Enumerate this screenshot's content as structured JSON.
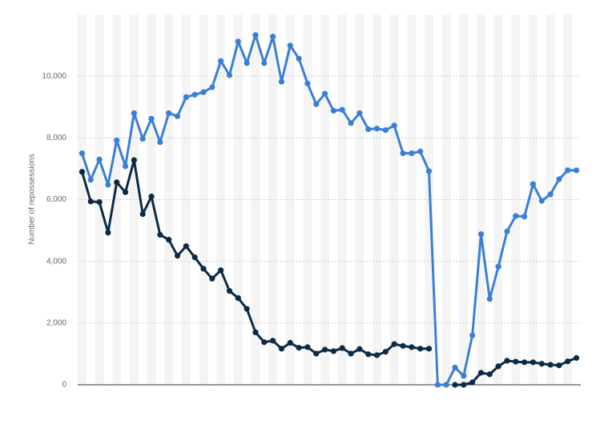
{
  "chart_data": {
    "type": "line",
    "y_label": "Number of repossessions",
    "categories": [
      null,
      null,
      null,
      null,
      null,
      null,
      null,
      null,
      null,
      null,
      null,
      null,
      null,
      null,
      null,
      null,
      null,
      null,
      null,
      null,
      null,
      null,
      null,
      null,
      null,
      null,
      null,
      null,
      null,
      null,
      null,
      null,
      null,
      null,
      null,
      null,
      null,
      null,
      null,
      null,
      null,
      null,
      null,
      null,
      null,
      null,
      null,
      null,
      null,
      null,
      null,
      null,
      null,
      null,
      null,
      null,
      null,
      null
    ],
    "series": [
      {
        "color": "#3a7fd5",
        "values": [
          7500,
          6640,
          7300,
          6480,
          7920,
          7080,
          8800,
          7970,
          8620,
          7860,
          8800,
          8700,
          9320,
          9400,
          9480,
          9640,
          10490,
          10030,
          11120,
          10420,
          11330,
          10420,
          11280,
          9820,
          10990,
          10570,
          9760,
          9090,
          9430,
          8880,
          8910,
          8480,
          8800,
          8280,
          8300,
          8250,
          8400,
          7500,
          7500,
          7560,
          6920,
          0,
          0,
          560,
          290,
          1600,
          4880,
          2780,
          3830,
          4970,
          5470,
          5450,
          6500,
          5960,
          6170,
          6660,
          6950,
          6950
        ]
      },
      {
        "color": "#0d2a45",
        "values": [
          6900,
          5940,
          5920,
          4930,
          6560,
          6240,
          7280,
          5530,
          6100,
          4860,
          4700,
          4180,
          4490,
          4130,
          3760,
          3440,
          3710,
          3040,
          2810,
          2460,
          1700,
          1380,
          1430,
          1170,
          1360,
          1200,
          1220,
          1010,
          1140,
          1090,
          1190,
          1010,
          1160,
          990,
          960,
          1070,
          1320,
          1260,
          1220,
          1170,
          1170,
          null,
          null,
          0,
          0,
          80,
          390,
          340,
          600,
          780,
          750,
          730,
          730,
          680,
          650,
          630,
          760,
          870
        ]
      }
    ],
    "ylim": [
      0,
      12000
    ],
    "yticks": [
      0,
      {
        "value": 2000,
        "label": "2,000"
      },
      {
        "value": 4000,
        "label": "4,000"
      },
      {
        "value": 6000,
        "label": "6,000"
      },
      {
        "value": 8000,
        "label": "8,000"
      },
      {
        "value": 10000,
        "label": "10,000"
      }
    ],
    "grid": true
  }
}
